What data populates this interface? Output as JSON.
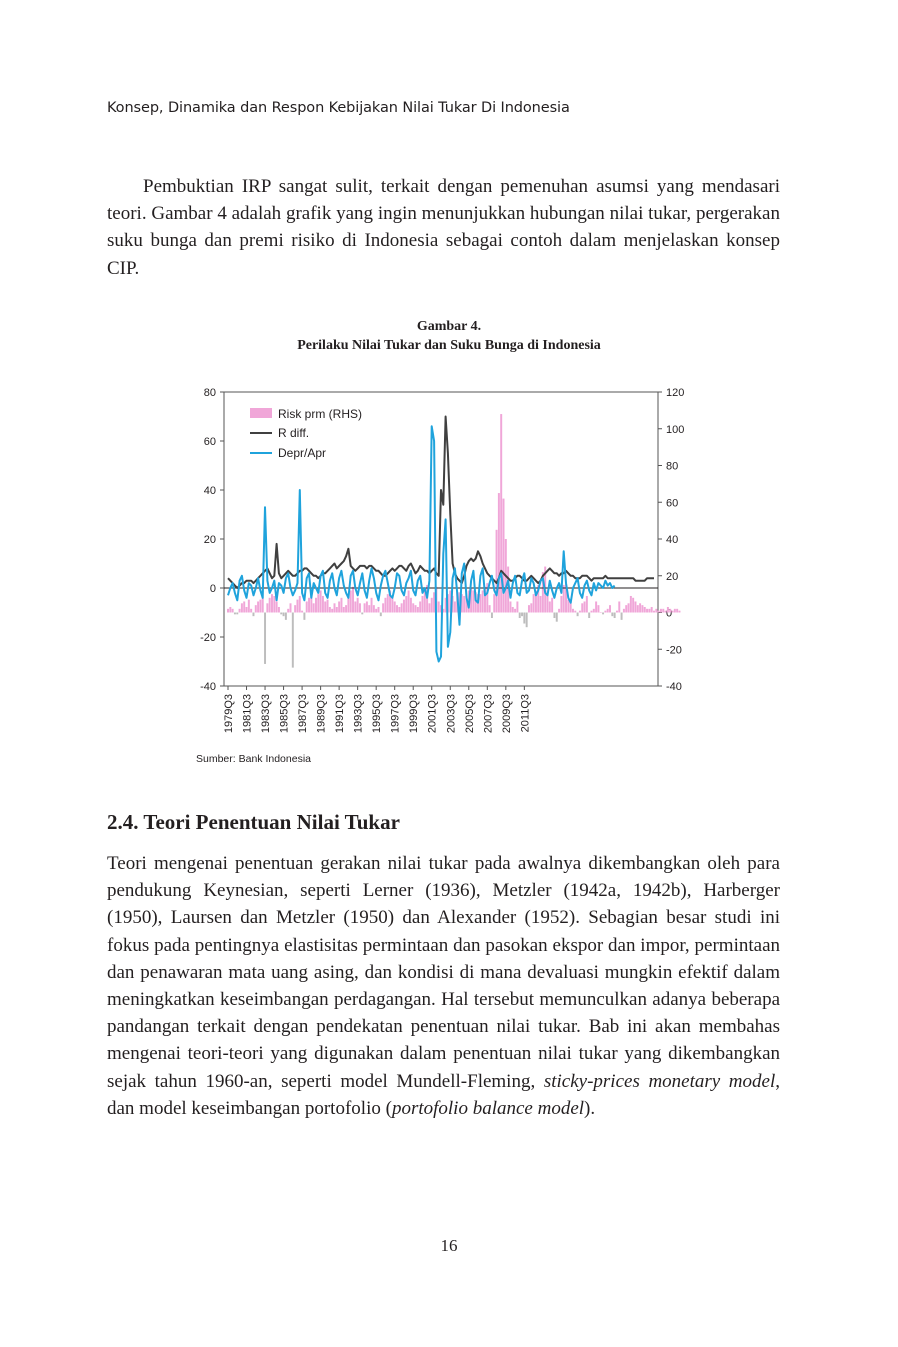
{
  "header": {
    "running_title": "Konsep, Dinamika dan Respon Kebijakan Nilai Tukar Di Indonesia"
  },
  "intro": {
    "paragraph": "Pembuktian IRP sangat sulit, terkait dengan pemenuhan asumsi yang mendasari teori. Gambar 4 adalah grafik yang ingin menunjukkan hubungan nilai tukar, pergerakan suku bunga dan premi risiko di Indonesia sebagai contoh dalam menjelaskan konsep CIP."
  },
  "figure": {
    "number": "Gambar 4.",
    "caption": "Perilaku Nilai Tukar dan Suku Bunga di Indonesia",
    "source": "Sumber: Bank Indonesia"
  },
  "chart_data": {
    "type": "line",
    "title": "",
    "left_axis": {
      "range": [
        -40,
        80
      ],
      "ticks": [
        "80",
        "60",
        "40",
        "20",
        "0",
        "-20",
        "-40"
      ]
    },
    "right_axis": {
      "range": [
        -40,
        120
      ],
      "ticks": [
        "120",
        "100",
        "80",
        "60",
        "40",
        "20",
        "0",
        "-20",
        "-40"
      ]
    },
    "x_tick_labels": [
      "1979Q3",
      "1981Q3",
      "1983Q3",
      "1985Q3",
      "1987Q3",
      "1989Q3",
      "1991Q3",
      "1993Q3",
      "1995Q3",
      "1997Q3",
      "1999Q3",
      "2001Q3",
      "2003Q3",
      "2005Q3",
      "2007Q3",
      "2009Q3",
      "2011Q3"
    ],
    "legend": {
      "position": "top-left",
      "entries": [
        "Risk prm (RHS)",
        "R diff.",
        "Depr/Apr"
      ]
    },
    "colors": {
      "risk": "#f0a6d8",
      "risk_negative": "#bdbdbd",
      "rdiff": "#404040",
      "depr": "#1fa3dc"
    },
    "series": [
      {
        "name": "Risk prm (RHS)",
        "axis": "right",
        "kind": "bar",
        "x": "1979Q3..2012Q3",
        "values": [
          2,
          3,
          2,
          -1,
          -1,
          2,
          5,
          6,
          3,
          7,
          2,
          -2,
          4,
          6,
          7,
          8,
          -28,
          5,
          8,
          10,
          9,
          6,
          3,
          -1,
          -2,
          -4,
          2,
          5,
          -30,
          4,
          7,
          9,
          1,
          -4,
          6,
          8,
          9,
          5,
          8,
          10,
          12,
          9,
          6,
          7,
          3,
          2,
          5,
          3,
          6,
          8,
          3,
          4,
          9,
          12,
          14,
          6,
          8,
          5,
          -1,
          5,
          6,
          4,
          8,
          4,
          2,
          3,
          -2,
          5,
          8,
          10,
          12,
          8,
          6,
          4,
          3,
          5,
          7,
          9,
          12,
          8,
          5,
          4,
          3,
          6,
          9,
          12,
          15,
          5,
          8,
          11,
          14,
          6,
          4,
          2,
          8,
          10,
          12,
          9,
          6,
          11,
          11,
          10,
          9,
          8,
          12,
          13,
          12,
          11,
          10,
          10,
          12,
          14,
          16,
          4,
          -3,
          10,
          45,
          65,
          108,
          62,
          40,
          25,
          6,
          3,
          2,
          6,
          -3,
          -2,
          -6,
          -8,
          4,
          5,
          10,
          12,
          15,
          9,
          22,
          25,
          12,
          6,
          8,
          -3,
          -5,
          2,
          9,
          15,
          16,
          7,
          6,
          2,
          1,
          -2,
          1,
          5,
          6,
          9,
          -3,
          1,
          2,
          6,
          4,
          0,
          -1,
          1,
          2,
          4,
          -2,
          -3,
          1,
          6,
          -4,
          2,
          4,
          5,
          9,
          8,
          6,
          4,
          5,
          4,
          3,
          2,
          2,
          3,
          1,
          2,
          1,
          2,
          2,
          1,
          3,
          2,
          1,
          2,
          2,
          1
        ]
      },
      {
        "name": "R diff.",
        "axis": "left",
        "kind": "line",
        "x": "1979Q3..2012Q3",
        "values": [
          4,
          3,
          2,
          1,
          0,
          1,
          2,
          2,
          3,
          3,
          3,
          2,
          3,
          4,
          5,
          6,
          7,
          8,
          6,
          4,
          5,
          18,
          6,
          4,
          5,
          6,
          7,
          6,
          5,
          5,
          6,
          7,
          7,
          8,
          8,
          7,
          6,
          5,
          5,
          4,
          5,
          6,
          6,
          7,
          8,
          9,
          10,
          8,
          9,
          10,
          11,
          13,
          16,
          9,
          8,
          7,
          8,
          9,
          9,
          9,
          8,
          9,
          9,
          8,
          7,
          7,
          6,
          5,
          5,
          6,
          7,
          8,
          7,
          8,
          9,
          9,
          8,
          7,
          9,
          10,
          8,
          6,
          7,
          9,
          8,
          7,
          7,
          6,
          7,
          8,
          6,
          5,
          40,
          34,
          70,
          55,
          30,
          10,
          6,
          4,
          3,
          2,
          5,
          9,
          11,
          12,
          11,
          12,
          15,
          13,
          10,
          8,
          6,
          5,
          4,
          3,
          2,
          4,
          7,
          6,
          5,
          4,
          3,
          3,
          4,
          5,
          5,
          4,
          3,
          3,
          4,
          5,
          4,
          3,
          2,
          3,
          5,
          6,
          7,
          8,
          7,
          6,
          6,
          5,
          6,
          6,
          7,
          6,
          5,
          5,
          4,
          4,
          4,
          5,
          5,
          5,
          4,
          3,
          4,
          4,
          4,
          4,
          4,
          5,
          4,
          4,
          4,
          4,
          4,
          4,
          4,
          4,
          4,
          4,
          4,
          4,
          3,
          3,
          3,
          3,
          3,
          4,
          4,
          4,
          4
        ]
      },
      {
        "name": "Depr/Apr",
        "axis": "left",
        "kind": "line",
        "x": "1979Q3..2012Q3",
        "values": [
          -3,
          0,
          2,
          -2,
          -5,
          3,
          5,
          -1,
          -4,
          2,
          1,
          -3,
          0,
          4,
          -1,
          -4,
          33,
          3,
          -2,
          0,
          3,
          -5,
          2,
          1,
          -2,
          4,
          6,
          0,
          -3,
          -1,
          2,
          40,
          -2,
          -5,
          4,
          6,
          -4,
          2,
          0,
          -2,
          5,
          7,
          -2,
          -4,
          3,
          6,
          0,
          -3,
          4,
          7,
          1,
          -2,
          -4,
          5,
          7,
          0,
          -3,
          2,
          6,
          -1,
          -4,
          3,
          8,
          4,
          -2,
          -5,
          1,
          5,
          7,
          2,
          -3,
          -4,
          0,
          6,
          5,
          -1,
          -3,
          2,
          4,
          7,
          -1,
          -3,
          3,
          5,
          -2,
          0,
          -4,
          3,
          66,
          60,
          -26,
          -30,
          -28,
          14,
          28,
          -24,
          -18,
          4,
          8,
          -2,
          -15,
          6,
          10,
          -4,
          -8,
          3,
          7,
          -5,
          -6,
          5,
          8,
          -3,
          -2,
          2,
          5,
          -1,
          -3,
          4,
          6,
          -2,
          0,
          3,
          -4,
          2,
          5,
          -2,
          -3,
          3,
          6,
          -2,
          -1,
          4,
          2,
          -3,
          -1,
          3,
          4,
          -2,
          -3,
          3,
          -1,
          -4,
          0,
          2,
          -2,
          15,
          2,
          -4,
          -6,
          0,
          2,
          4,
          -2,
          -4,
          1,
          3,
          -1,
          -3,
          2,
          -1,
          2,
          1,
          0,
          3,
          1,
          2,
          0,
          1
        ]
      }
    ]
  },
  "section": {
    "heading": "2.4. Teori Penentuan Nilai Tukar",
    "paragraph_pre": "Teori mengenai penentuan gerakan nilai tukar pada awalnya dikembangkan oleh para pendukung Keynesian, seperti Lerner (1936), Metzler (1942a, 1942b), Harberger (1950), Laursen dan Metzler (1950) dan Alexander (1952). Sebagian besar studi ini fokus pada pentingnya elastisitas permintaan dan pasokan ekspor dan impor, permintaan dan penawaran mata uang asing, dan kondisi di mana devaluasi mungkin efektif dalam meningkatkan keseimbangan perdagangan. Hal tersebut memunculkan adanya beberapa pandangan terkait dengan pendekatan penentuan nilai tukar. Bab ini akan membahas mengenai teori-teori yang digunakan dalam penentuan nilai tukar yang dikembangkan sejak tahun 1960-an, seperti model Mundell-Fleming, ",
    "italic_1": "sticky-prices monetary model",
    "mid_1": ", dan model keseimbangan portofolio (",
    "italic_2": "portofolio balance model",
    "end": ")."
  },
  "footer": {
    "page_number": "16"
  }
}
